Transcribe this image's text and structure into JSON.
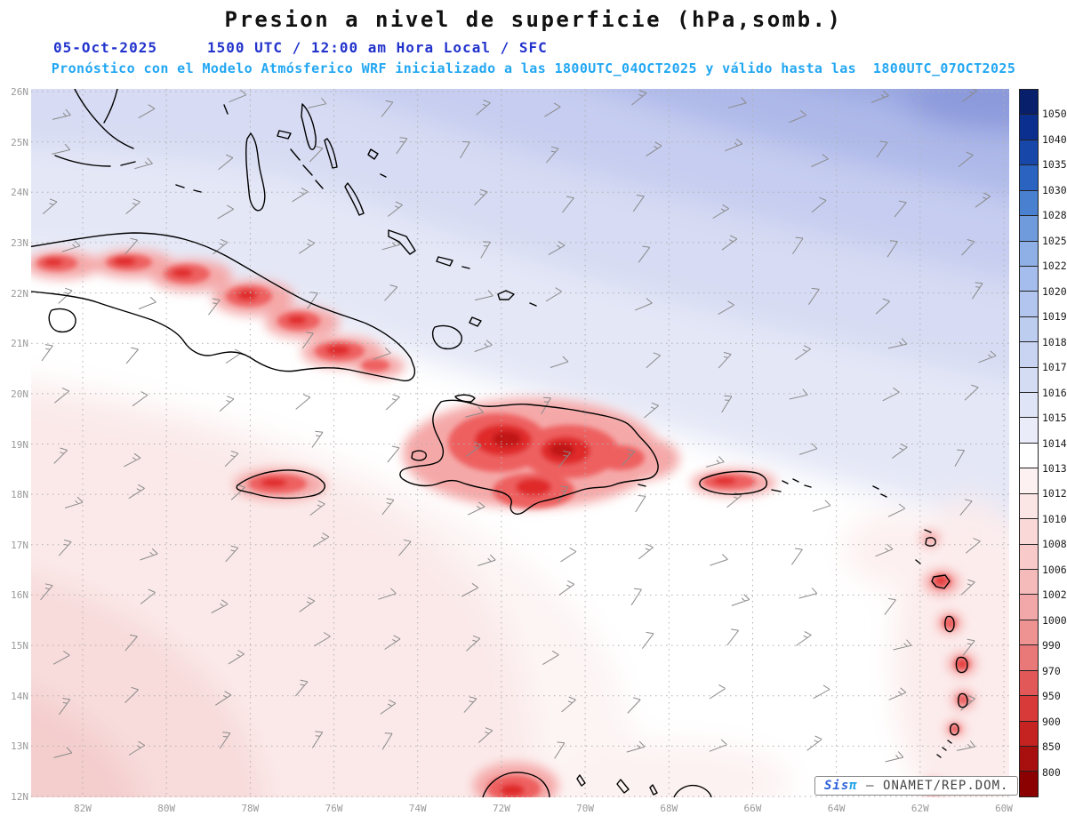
{
  "header": {
    "title": "Presion a nivel de superficie (hPa,somb.)",
    "subtitle_date": "05-Oct-2025",
    "subtitle_time": "1500 UTC / 12:00 am Hora Local / SFC",
    "forecast_line": "Pronóstico con el Modelo Atmósferico WRF inicializado a las 1800UTC_04OCT2025 y válido hasta las  1800UTC_07OCT2025"
  },
  "map": {
    "lat_labels": [
      "26N",
      "25N",
      "24N",
      "23N",
      "22N",
      "21N",
      "20N",
      "19N",
      "18N",
      "17N",
      "16N",
      "15N",
      "14N",
      "13N",
      "12N"
    ],
    "lon_labels": [
      "82W",
      "80W",
      "78W",
      "76W",
      "74W",
      "72W",
      "70W",
      "68W",
      "66W",
      "64W",
      "62W",
      "60W"
    ]
  },
  "colorbar": {
    "unit": "hPa",
    "labels": [
      "1050",
      "1040",
      "1035",
      "1030",
      "1028",
      "1025",
      "1022",
      "1020",
      "1019",
      "1018",
      "1017",
      "1016",
      "1015",
      "1014",
      "1013",
      "1012",
      "1010",
      "1008",
      "1006",
      "1002",
      "1000",
      "990",
      "970",
      "950",
      "900",
      "850",
      "800"
    ],
    "colors": [
      "#081f6b",
      "#0a2f8e",
      "#1747a8",
      "#2a63c0",
      "#4a80d0",
      "#6f9bdc",
      "#8fb0e6",
      "#a4bdec",
      "#b1c5ee",
      "#bccdf0",
      "#c8d4f2",
      "#d4dcf4",
      "#dfe4f6",
      "#eaecf9",
      "#ffffff",
      "#fdf1f1",
      "#fce5e5",
      "#fad8d8",
      "#f8caca",
      "#f5baba",
      "#f2a8a8",
      "#ee9292",
      "#e97878",
      "#e25858",
      "#d83a3a",
      "#c52222",
      "#a81010",
      "#8b0000"
    ]
  },
  "attribution": {
    "brand": "Sis",
    "pi": "π",
    "text": "— ONAMET/REP.DOM."
  },
  "colors": {
    "title": "#111111",
    "subtitle_blue": "#2233cc",
    "forecast_cyan": "#22a7f2",
    "attribution_brand": "#2b5fd9",
    "attribution_pi": "#1fa3e8",
    "attribution_text": "#444444",
    "coastline": "#000000",
    "wind_barb": "#8a8a8a",
    "grid": "#b0b0b0",
    "axis_label": "#9a9a9a"
  }
}
